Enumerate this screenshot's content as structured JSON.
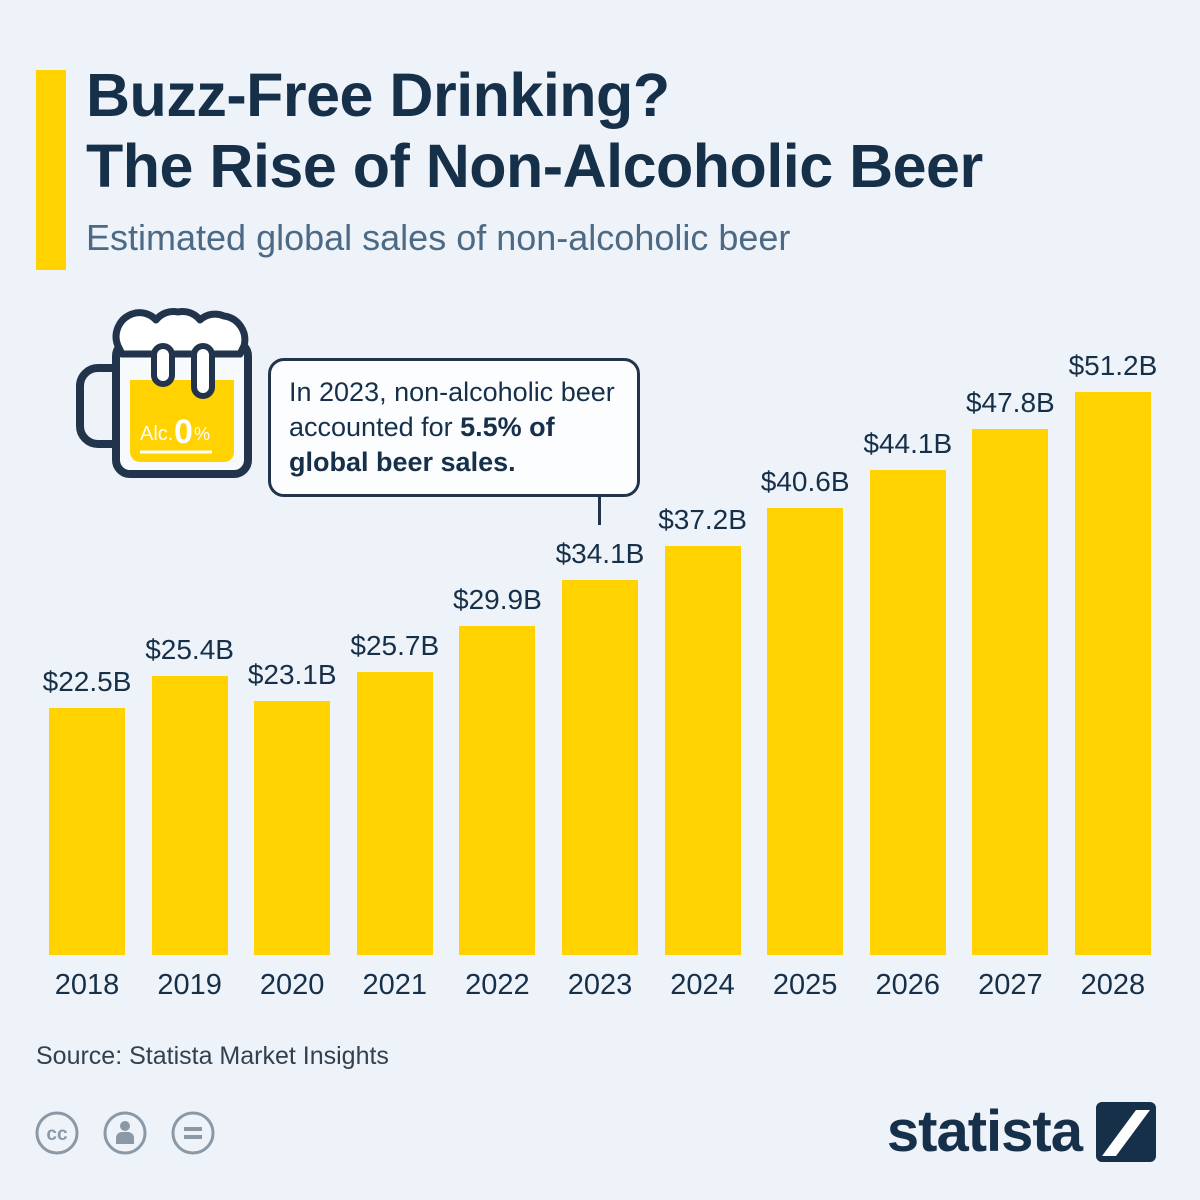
{
  "page": {
    "background_color": "#eef3f9",
    "accent_color": "#ffd200",
    "text_color": "#17304a"
  },
  "header": {
    "title_line1": "Buzz-Free Drinking?",
    "title_line2": "The Rise of Non-Alcoholic Beer",
    "subtitle": "Estimated global sales of non-alcoholic beer"
  },
  "mug": {
    "label_small": "Alc.",
    "label_big": "0",
    "label_pct": "%"
  },
  "callout": {
    "text_normal": "In 2023, non-alcoholic beer accounted for ",
    "text_bold": "5.5% of global beer sales."
  },
  "chart_data": {
    "type": "bar",
    "title": "Estimated global sales of non-alcoholic beer",
    "categories": [
      "2018",
      "2019",
      "2020",
      "2021",
      "2022",
      "2023",
      "2024",
      "2025",
      "2026",
      "2027",
      "2028"
    ],
    "values": [
      22.5,
      25.4,
      23.1,
      25.7,
      29.9,
      34.1,
      37.2,
      40.6,
      44.1,
      47.8,
      51.2
    ],
    "value_labels": [
      "$22.5B",
      "$25.4B",
      "$23.1B",
      "$25.7B",
      "$29.9B",
      "$34.1B",
      "$37.2B",
      "$40.6B",
      "$44.1B",
      "$47.8B",
      "$51.2B"
    ],
    "unit": "USD billions",
    "bar_color": "#ffd200",
    "ylim": [
      0,
      55
    ],
    "grid": false,
    "legend": false,
    "annotation": "In 2023, non-alcoholic beer accounted for 5.5% of global beer sales."
  },
  "footer": {
    "source": "Source: Statista Market Insights",
    "logo_text": "statista",
    "license_icons": [
      "creative-commons",
      "attribution",
      "no-derivatives"
    ]
  }
}
